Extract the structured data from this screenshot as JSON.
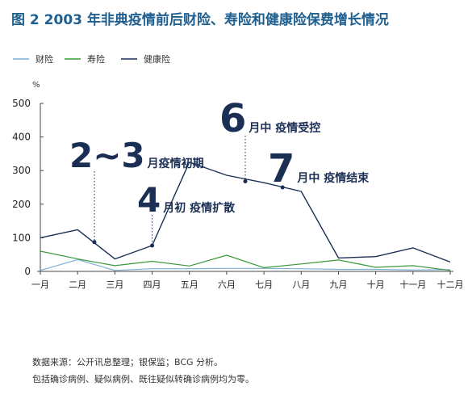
{
  "title": "图 2  2003 年非典疫情前后财险、寿险和健康险保费增长情况",
  "unit": "%",
  "colors": {
    "title": "#1f5f8f",
    "财险": "#7fb0d8",
    "寿险": "#3a9a3a",
    "健康险": "#1b2f55",
    "axis": "#444444",
    "annotation": "#1b2f55"
  },
  "chart_data": {
    "type": "line",
    "categories": [
      "一月",
      "二月",
      "三月",
      "四月",
      "五月",
      "六月",
      "七月",
      "八月",
      "九月",
      "十月",
      "十一月",
      "十二月"
    ],
    "ylim": [
      0,
      500
    ],
    "yticks": [
      0,
      100,
      200,
      300,
      400,
      500
    ],
    "series": [
      {
        "name": "财险",
        "values": [
          3,
          35,
          3,
          8,
          8,
          9,
          9,
          8,
          6,
          6,
          4,
          5
        ]
      },
      {
        "name": "寿险",
        "values": [
          60,
          37,
          17,
          30,
          16,
          48,
          11,
          22,
          34,
          12,
          17,
          3
        ]
      },
      {
        "name": "健康险",
        "values": [
          100,
          124,
          37,
          77,
          325,
          286,
          264,
          238,
          40,
          44,
          70,
          28
        ]
      }
    ],
    "annotations": [
      {
        "big": "2~3",
        "text": "月疫情初期",
        "x": 1.45,
        "y": 87
      },
      {
        "big": "4",
        "text": "月初 疫情扩散",
        "x": 3.0,
        "y": 77
      },
      {
        "big": "6",
        "text": "月中 疫情受控",
        "x": 5.5,
        "y": 268
      },
      {
        "big": "7",
        "text": "月中 疫情结束",
        "x": 6.5,
        "y": 250
      }
    ]
  },
  "notes": [
    "数据来源：公开讯息整理；银保监；BCG 分析。",
    "包括确诊病例、疑似病例、既往疑似转确诊病例均为零。"
  ]
}
